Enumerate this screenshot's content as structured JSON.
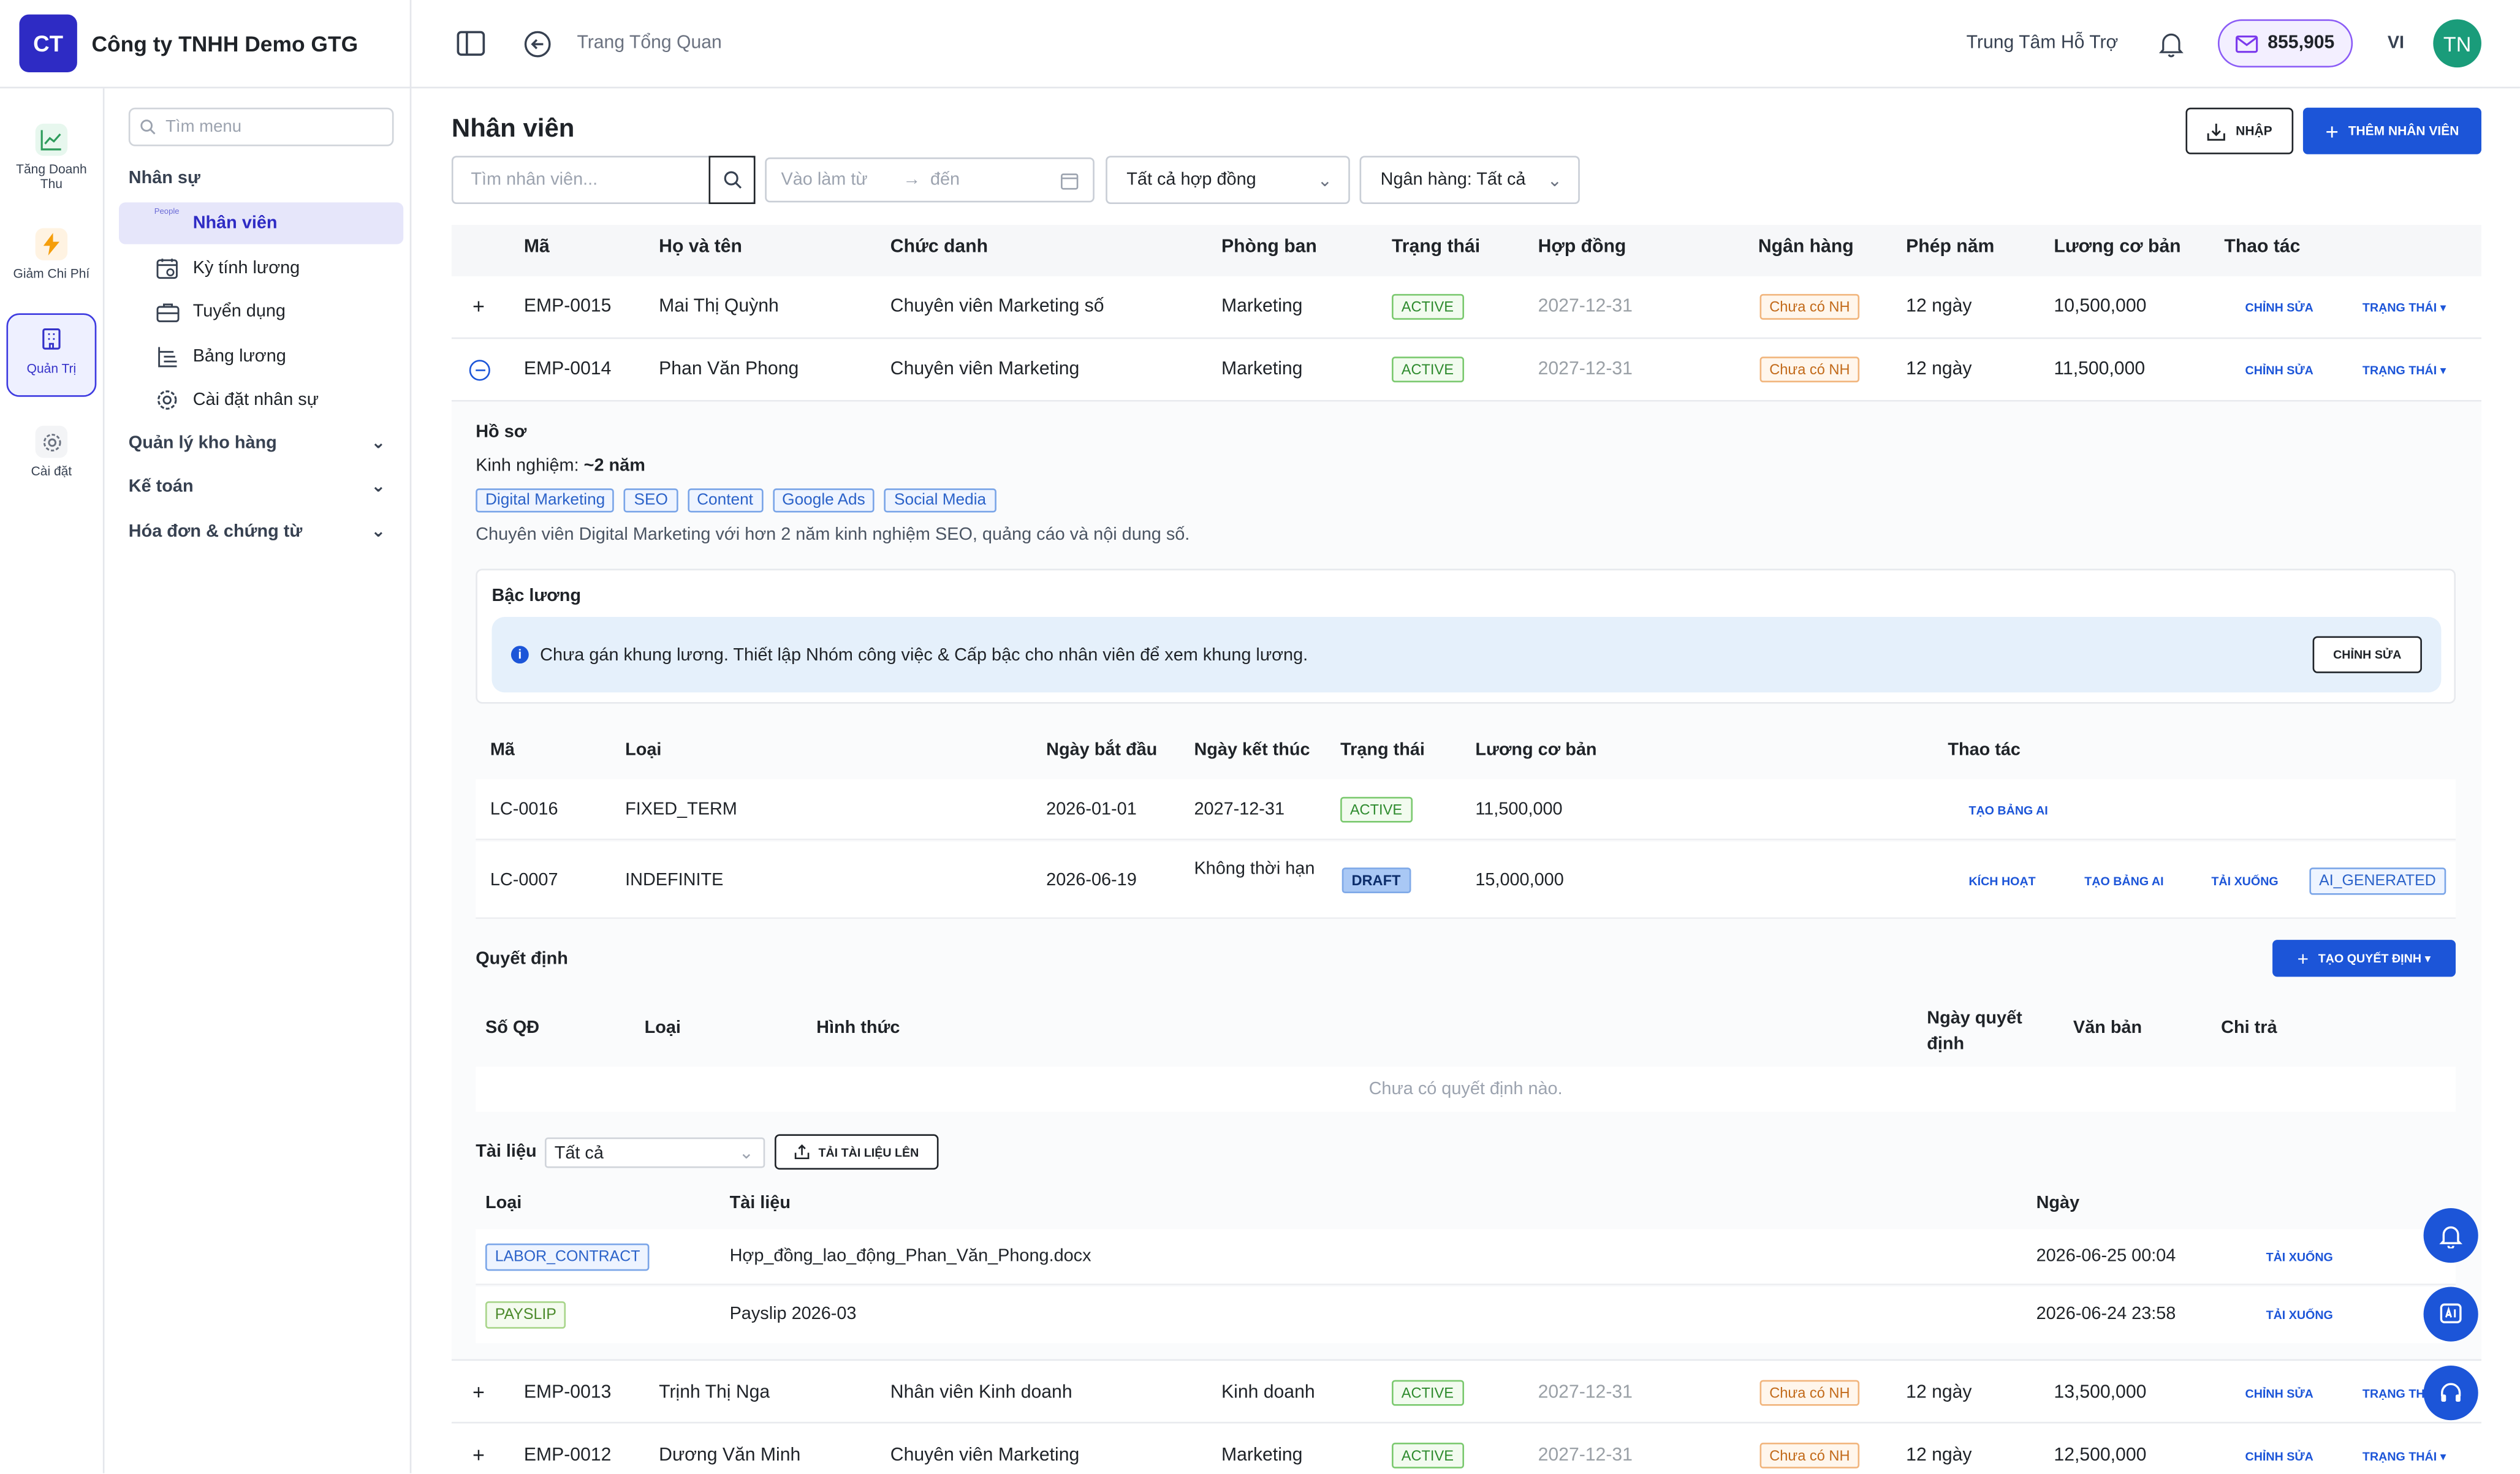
{
  "header": {
    "logo_initials": "CT",
    "company": "Công ty TNHH Demo GTG",
    "breadcrumb": "Trang Tổng Quan",
    "support": "Trung Tâm Hỗ Trợ",
    "credits": "855,905",
    "language": "VI",
    "user_initials": "TN"
  },
  "rail": [
    {
      "label": "Tăng Doanh Thu",
      "icon": "trending-up-icon"
    },
    {
      "label": "Giảm Chi Phí",
      "icon": "bolt-icon"
    },
    {
      "label": "Quản Trị",
      "icon": "building-icon",
      "active": true
    },
    {
      "label": "Cài đặt",
      "icon": "gear-icon"
    }
  ],
  "menu": {
    "search_placeholder": "Tìm menu",
    "group_hr": "Nhân sự",
    "people_tag": "People",
    "items": [
      "Nhân viên",
      "Kỳ tính lương",
      "Tuyển dụng",
      "Bảng lương",
      "Cài đặt nhân sự"
    ],
    "group_warehouse": "Quản lý kho hàng",
    "group_accounting": "Kế toán",
    "group_invoices": "Hóa đơn & chứng từ"
  },
  "page": {
    "title": "Nhân viên",
    "import_label": "NHẬP",
    "add_label": "THÊM NHÂN VIÊN",
    "search_placeholder": "Tìm nhân viên...",
    "date_from": "Vào làm từ",
    "date_arrow": "→",
    "date_to": "đến",
    "contract_filter": "Tất cả hợp đồng",
    "bank_filter": "Ngân hàng: Tất cả"
  },
  "table": {
    "headers": [
      "Mã",
      "Họ và tên",
      "Chức danh",
      "Phòng ban",
      "Trạng thái",
      "Hợp đồng",
      "Ngân hàng",
      "Phép năm",
      "Lương cơ bản",
      "Thao tác"
    ],
    "edit_label": "CHỈNH SỬA",
    "status_label": "TRẠNG THÁI ▾",
    "status_label_cut": "TRẠNG THÁ",
    "rows": [
      {
        "code": "EMP-0015",
        "name": "Mai Thị Quỳnh",
        "title": "Chuyên viên Marketing số",
        "dept": "Marketing",
        "status": "ACTIVE",
        "contract": "2027-12-31",
        "bank": "Chưa có NH",
        "leave": "12 ngày",
        "salary": "10,500,000"
      },
      {
        "code": "EMP-0014",
        "name": "Phan Văn Phong",
        "title": "Chuyên viên Marketing",
        "dept": "Marketing",
        "status": "ACTIVE",
        "contract": "2027-12-31",
        "bank": "Chưa có NH",
        "leave": "12 ngày",
        "salary": "11,500,000"
      },
      {
        "code": "EMP-0013",
        "name": "Trịnh Thị Nga",
        "title": "Nhân viên Kinh doanh",
        "dept": "Kinh doanh",
        "status": "ACTIVE",
        "contract": "2027-12-31",
        "bank": "Chưa có NH",
        "leave": "12 ngày",
        "salary": "13,500,000"
      },
      {
        "code": "EMP-0012",
        "name": "Dương Văn Minh",
        "title": "Chuyên viên Marketing",
        "dept": "Marketing",
        "status": "ACTIVE",
        "contract": "2027-12-31",
        "bank": "Chưa có NH",
        "leave": "12 ngày",
        "salary": "12,500,000"
      }
    ]
  },
  "detail": {
    "profile_title": "Hồ sơ",
    "experience_label": "Kinh nghiệm: ",
    "experience_value": "~2 năm",
    "tags": [
      "Digital Marketing",
      "SEO",
      "Content",
      "Google Ads",
      "Social Media"
    ],
    "bio": "Chuyên viên Digital Marketing với hơn 2 năm kinh nghiệm SEO, quảng cáo và nội dung số.",
    "salary_grade_title": "Bậc lương",
    "salary_grade_info": "Chưa gán khung lương. Thiết lập Nhóm công việc & Cấp bậc cho nhân viên để xem khung lương.",
    "salary_grade_edit": "CHỈNH SỬA",
    "contracts": {
      "headers": [
        "Mã",
        "Loại",
        "Ngày bắt đầu",
        "Ngày kết thúc",
        "Trạng thái",
        "Lương cơ bản",
        "Thao tác"
      ],
      "rows": [
        {
          "code": "LC-0016",
          "type": "FIXED_TERM",
          "start": "2026-01-01",
          "end": "2027-12-31",
          "status": "ACTIVE",
          "salary": "11,500,000",
          "actions": [
            "TẠO BẢNG AI"
          ]
        },
        {
          "code": "LC-0007",
          "type": "INDEFINITE",
          "start": "2026-06-19",
          "end": "Không thời hạn",
          "status": "DRAFT",
          "salary": "15,000,000",
          "actions": [
            "KÍCH HOẠT",
            "TẠO BẢNG AI",
            "TẢI XUỐNG"
          ],
          "badge": "AI_GENERATED"
        }
      ]
    },
    "decisions_title": "Quyết định",
    "create_decision": "TẠO QUYẾT ĐỊNH ▾",
    "decisions_headers": [
      "Số QĐ",
      "Loại",
      "Hình thức",
      "Ngày quyết định",
      "Văn bản",
      "Chi trả"
    ],
    "decisions_empty": "Chưa có quyết định nào.",
    "docs_title": "Tài liệu",
    "docs_filter": "Tất cả",
    "upload_label": "TẢI TÀI LIỆU LÊN",
    "docs_headers": [
      "Loại",
      "Tài liệu",
      "Ngày"
    ],
    "docs": [
      {
        "type": "LABOR_CONTRACT",
        "name": "Hợp_đồng_lao_động_Phan_Văn_Phong.docx",
        "date": "2026-06-25 00:04",
        "action": "TẢI XUỐNG"
      },
      {
        "type": "PAYSLIP",
        "name": "Payslip 2026-03",
        "date": "2026-06-24 23:58",
        "action": "TẢI XUỐNG"
      }
    ]
  },
  "colors": {
    "brand": "#2e2bc4",
    "primary": "#1c55d8",
    "active": "#2e8b2e",
    "warning": "#c26a1a"
  }
}
